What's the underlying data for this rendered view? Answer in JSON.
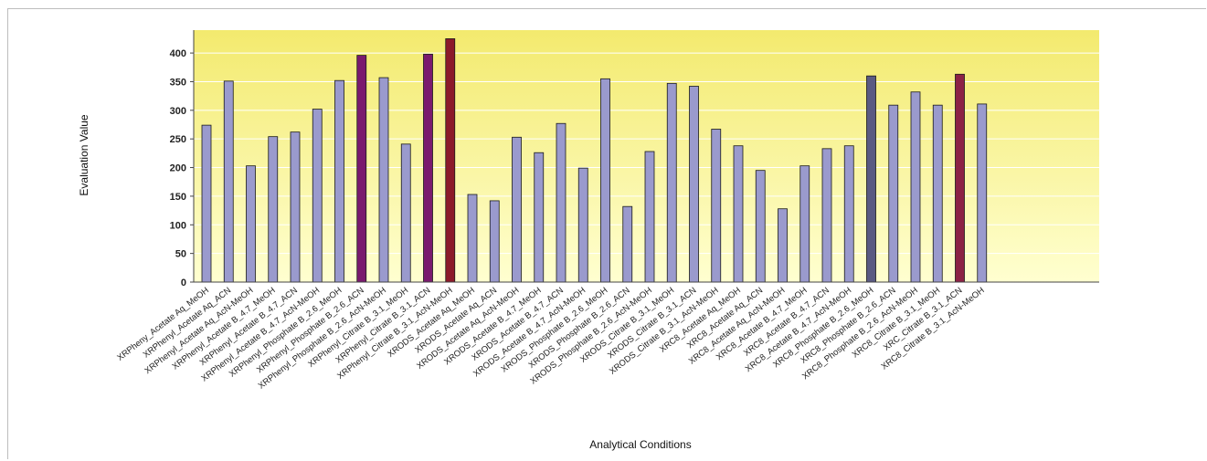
{
  "chart_data": {
    "type": "bar",
    "title": "",
    "xlabel": "Analytical Conditions",
    "ylabel": "Evaluation Value",
    "ylim": [
      0,
      440
    ],
    "yticks": [
      0,
      50,
      100,
      150,
      200,
      250,
      300,
      350,
      400
    ],
    "grid": true,
    "legend": "none",
    "colors": {
      "default": "#9a9acd",
      "plot_bg_top": "#f3ea6e",
      "plot_bg_bottom": "#ffffd0",
      "bar_stroke": "#1a1a1a"
    },
    "categories": [
      "XRPheny_Acetate Aq_MeOH",
      "XRPhenyl_Acetate Aq_ACN",
      "XRPhenyl_Acetate Aq_AcN-MeOH",
      "XRPhenyl_Acetate B_4.7_MeOH",
      "XRPhenyl_Acetate B_4.7_ACN",
      "XRPhenyl_Acetate B_4.7_AcN-MeOH",
      "XRPhenyl_Phosphate B_2.6_MeOH",
      "XRPhenyl_Phosphate B_2.6_ACN",
      "XRPhenyl_Phosphate B_2.6_AcN-MeOH",
      "XRPhenyl_Citrate B_3.1_MeOH",
      "XRPhenyl_Citrate B_3.1_ACN",
      "XRPhenyl_Citrate B_3.1_AcN-MeOH",
      "XRODS_Acetate Aq_MeOH",
      "XRODS_Acetate Aq_ACN",
      "XRODS_Acetate Aq_AcN-MeOH",
      "XRODS_Acetate B_4.7_MeOH",
      "XRODS_Acetate B_4.7_ACN",
      "XRODS_Acetate B_4.7_AcN-MeOH",
      "XRODS_Phosphate B_2.6_MeOH",
      "XRODS_Phosphate B_2.6_ACN",
      "XRODS_Phosphate B_2.6_AcN-MeOH",
      "XRODS_Citrate B_3.1_MeOH",
      "XRODS_Citrate B_3.1_ACN",
      "XRODS_Citrate B_3.1_AcN-MeOH",
      "XRC8_Acetate Aq_MeOH",
      "XRC8_Acetate Aq_ACN",
      "XRC8_Acetate Aq_AcN-MeOH",
      "XRC8_Acetate B_4.7_MeOH",
      "XRC8_Acetate B_4.7_ACN",
      "XRC8_Acetate B_4.7_AcN-MeOH",
      "XRC8_Phosphate B_2.6_MeOH",
      "XRC8_Phosphate B_2.6_ACN",
      "XRC8_Phosphate B_2.6_AcN-MeOH",
      "XRC8_Citrate B_3.1_MeOH",
      "XRC_Citrate B_3.1_ACN",
      "XRC8_Citrate B_3.1_AcN-MeOH"
    ],
    "values": [
      274,
      351,
      203,
      254,
      262,
      302,
      352,
      396,
      357,
      241,
      398,
      425,
      153,
      142,
      253,
      226,
      277,
      199,
      355,
      132,
      228,
      347,
      342,
      267,
      238,
      195,
      128,
      203,
      233,
      238,
      360,
      309,
      332,
      309,
      363,
      311
    ],
    "bar_colors": [
      "#9a9acd",
      "#9a9acd",
      "#9a9acd",
      "#9a9acd",
      "#9a9acd",
      "#9a9acd",
      "#9a9acd",
      "#7a1a6e",
      "#9a9acd",
      "#9a9acd",
      "#7a1a6e",
      "#8c1a2a",
      "#9a9acd",
      "#9a9acd",
      "#9a9acd",
      "#9a9acd",
      "#9a9acd",
      "#9a9acd",
      "#9a9acd",
      "#9a9acd",
      "#9a9acd",
      "#9a9acd",
      "#9a9acd",
      "#9a9acd",
      "#9a9acd",
      "#9a9acd",
      "#9a9acd",
      "#9a9acd",
      "#9a9acd",
      "#9a9acd",
      "#5a5a82",
      "#9a9acd",
      "#9a9acd",
      "#9a9acd",
      "#8c2245",
      "#9a9acd"
    ]
  }
}
